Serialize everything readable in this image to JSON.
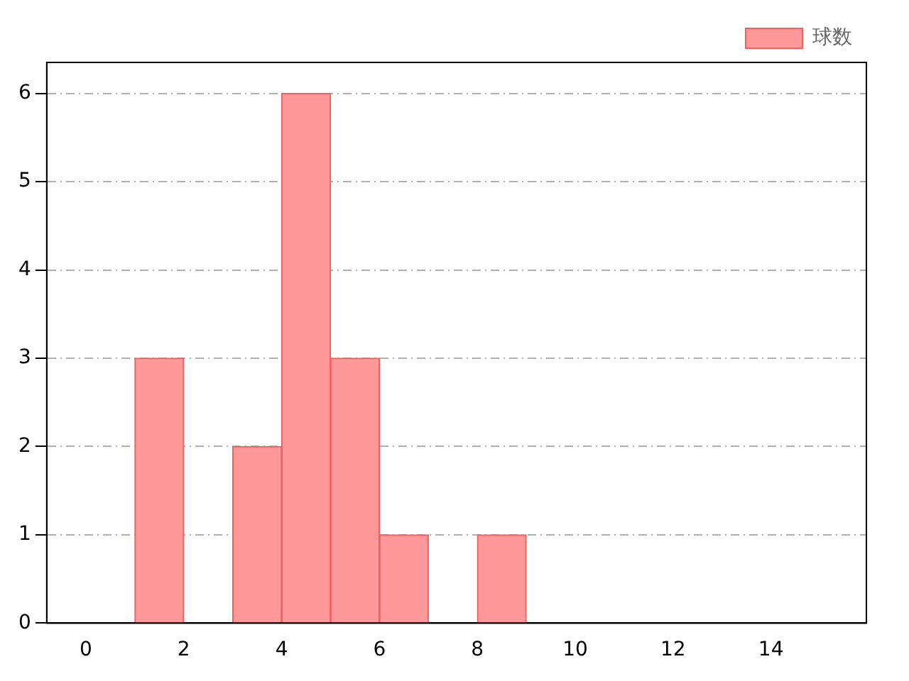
{
  "chart_data": {
    "type": "histogram",
    "bins": [
      1,
      2,
      3,
      4,
      5,
      6,
      7,
      8,
      9
    ],
    "series": [
      {
        "name": "球数",
        "color": "#ff9999",
        "values": [
          3,
          0,
          2,
          6,
          3,
          1,
          0,
          1
        ]
      }
    ],
    "xlim": [
      -0.8,
      15.95
    ],
    "xticks": [
      0,
      2,
      4,
      6,
      8,
      10,
      12,
      14
    ],
    "ylim": [
      0,
      6.35
    ],
    "yticks": [
      0,
      1,
      2,
      3,
      4,
      5,
      6
    ],
    "grid": "y",
    "legend": "top right"
  }
}
